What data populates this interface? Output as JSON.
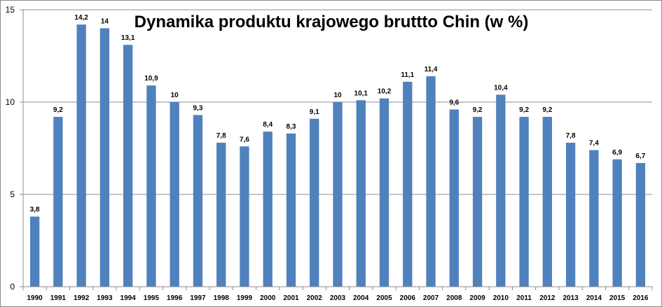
{
  "chart_data": {
    "type": "bar",
    "title": "Dynamika produktu krajowego bruttto Chin (w %)",
    "xlabel": "",
    "ylabel": "",
    "ylim": [
      0,
      15
    ],
    "yticks": [
      0,
      5,
      10,
      15
    ],
    "grid": true,
    "legend": "none",
    "bar_color": "#4f81bd",
    "categories": [
      "1990",
      "1991",
      "1992",
      "1993",
      "1994",
      "1995",
      "1996",
      "1997",
      "1998",
      "1999",
      "2000",
      "2001",
      "2002",
      "2003",
      "2004",
      "2005",
      "2006",
      "2007",
      "2008",
      "2009",
      "2010",
      "2011",
      "2012",
      "2013",
      "2014",
      "2015",
      "2016"
    ],
    "values": [
      3.8,
      9.2,
      14.2,
      14,
      13.1,
      10.9,
      10,
      9.3,
      7.8,
      7.6,
      8.4,
      8.3,
      9.1,
      10,
      10.1,
      10.2,
      11.1,
      11.4,
      9.6,
      9.2,
      10.4,
      9.2,
      9.2,
      7.8,
      7.4,
      6.9,
      6.7
    ],
    "data_labels": [
      "3,8",
      "9,2",
      "14,2",
      "14",
      "13,1",
      "10,9",
      "10",
      "9,3",
      "7,8",
      "7,6",
      "8,4",
      "8,3",
      "9,1",
      "10",
      "10,1",
      "10,2",
      "11,1",
      "11,4",
      "9,6",
      "9,2",
      "10,4",
      "9,2",
      "9,2",
      "7,8",
      "7,4",
      "6,9",
      "6,7"
    ]
  }
}
